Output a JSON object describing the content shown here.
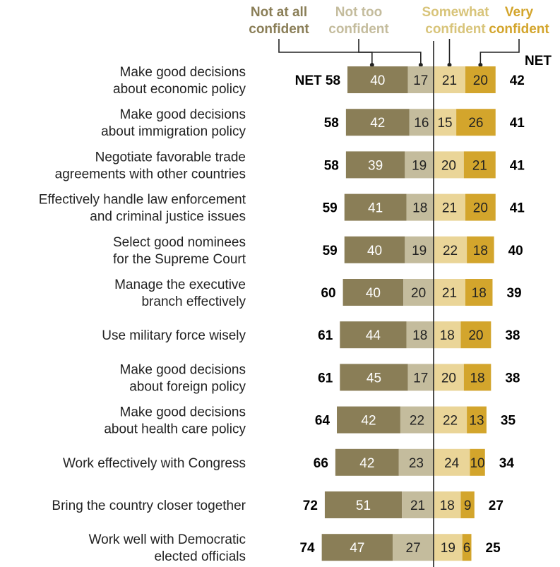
{
  "chart_data": {
    "type": "bar",
    "orientation": "horizontal",
    "stacking": "diverging",
    "legend_position": "top",
    "net_header": "NET",
    "net_prefix_first_row": "NET",
    "series": [
      {
        "name_lines": [
          "Not at all",
          "confident"
        ],
        "side": "negative",
        "color": "#8a7e57",
        "label_color": "#ffffff"
      },
      {
        "name_lines": [
          "Not too",
          "confident"
        ],
        "side": "negative",
        "color": "#c4bc9d",
        "label_color": "#222222"
      },
      {
        "name_lines": [
          "Somewhat",
          "confident"
        ],
        "side": "positive",
        "color": "#ead598",
        "label_color": "#222222"
      },
      {
        "name_lines": [
          "Very",
          "confident"
        ],
        "side": "positive",
        "color": "#d3a52c",
        "label_color": "#222222"
      }
    ],
    "legend_text_colors": [
      "#8a7e57",
      "#c4bc9d",
      "#d8c47a",
      "#d3a52c"
    ],
    "categories": [
      {
        "label_lines": [
          "Make good decisions",
          "about economic policy"
        ],
        "values": [
          40,
          17,
          21,
          20
        ],
        "net_negative": 58,
        "net_positive": 42
      },
      {
        "label_lines": [
          "Make good decisions",
          "about immigration policy"
        ],
        "values": [
          42,
          16,
          15,
          26
        ],
        "net_negative": 58,
        "net_positive": 41
      },
      {
        "label_lines": [
          "Negotiate favorable trade",
          "agreements with other countries"
        ],
        "values": [
          39,
          19,
          20,
          21
        ],
        "net_negative": 58,
        "net_positive": 41
      },
      {
        "label_lines": [
          "Effectively handle law enforcement",
          "and criminal justice issues"
        ],
        "values": [
          41,
          18,
          21,
          20
        ],
        "net_negative": 59,
        "net_positive": 41
      },
      {
        "label_lines": [
          "Select good nominees",
          "for the Supreme Court"
        ],
        "values": [
          40,
          19,
          22,
          18
        ],
        "net_negative": 59,
        "net_positive": 40
      },
      {
        "label_lines": [
          "Manage the executive",
          "branch effectively"
        ],
        "values": [
          40,
          20,
          21,
          18
        ],
        "net_negative": 60,
        "net_positive": 39
      },
      {
        "label_lines": [
          "Use military force wisely"
        ],
        "values": [
          44,
          18,
          18,
          20
        ],
        "net_negative": 61,
        "net_positive": 38
      },
      {
        "label_lines": [
          "Make good decisions",
          "about foreign policy"
        ],
        "values": [
          45,
          17,
          20,
          18
        ],
        "net_negative": 61,
        "net_positive": 38
      },
      {
        "label_lines": [
          "Make good decisions",
          "about health care policy"
        ],
        "values": [
          42,
          22,
          22,
          13
        ],
        "net_negative": 64,
        "net_positive": 35
      },
      {
        "label_lines": [
          "Work effectively with Congress"
        ],
        "values": [
          42,
          23,
          24,
          10
        ],
        "net_negative": 66,
        "net_positive": 34
      },
      {
        "label_lines": [
          "Bring the country closer together"
        ],
        "values": [
          51,
          21,
          18,
          9
        ],
        "net_negative": 72,
        "net_positive": 27
      },
      {
        "label_lines": [
          "Work well with Democratic",
          "elected officials"
        ],
        "values": [
          47,
          27,
          19,
          6
        ],
        "net_negative": 74,
        "net_positive": 25
      }
    ]
  }
}
